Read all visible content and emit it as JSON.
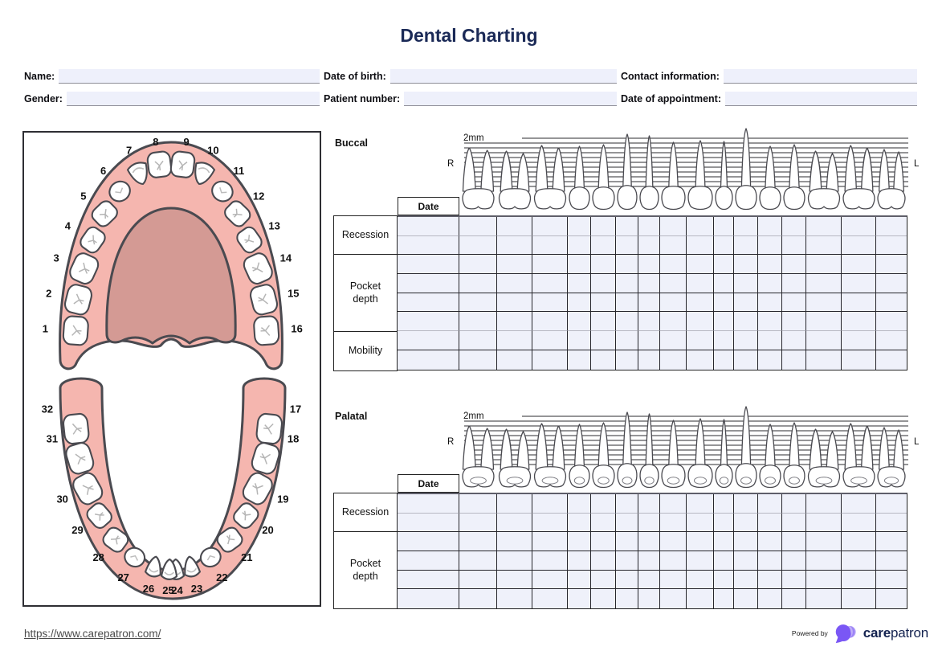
{
  "title": "Dental Charting",
  "patient_fields": {
    "name": "Name:",
    "dob": "Date of birth:",
    "contact": "Contact information:",
    "gender": "Gender:",
    "patient_number": "Patient number:",
    "appointment": "Date of appointment:"
  },
  "arch_diagram": {
    "upper_teeth": [
      "1",
      "2",
      "3",
      "4",
      "5",
      "6",
      "7",
      "8",
      "9",
      "10",
      "11",
      "12",
      "13",
      "14",
      "15",
      "16"
    ],
    "lower_teeth": [
      "17",
      "18",
      "19",
      "20",
      "21",
      "22",
      "23",
      "24",
      "25",
      "26",
      "27",
      "28",
      "29",
      "30",
      "31",
      "32"
    ]
  },
  "buccal": {
    "section_label": "Buccal",
    "scale_label": "2mm",
    "right_marker": "R",
    "left_marker": "L",
    "date_label": "Date",
    "row_groups": [
      {
        "label": "Recession",
        "rows": 2
      },
      {
        "label": "Pocket depth",
        "rows": 4
      },
      {
        "label": "Mobility",
        "rows": 2
      }
    ]
  },
  "palatal": {
    "section_label": "Palatal",
    "scale_label": "2mm",
    "right_marker": "R",
    "left_marker": "L",
    "date_label": "Date",
    "row_groups": [
      {
        "label": "Recession",
        "rows": 2
      },
      {
        "label": "Pocket depth",
        "rows": 4
      }
    ]
  },
  "tooth_types_strip": [
    "molar",
    "molar",
    "molar",
    "premolar",
    "premolar",
    "canine",
    "incisor",
    "central",
    "central",
    "incisor",
    "canine",
    "premolar",
    "premolar",
    "molar",
    "molar",
    "molar"
  ],
  "tooth_types_upper": [
    "molar",
    "molar",
    "molar",
    "premolar",
    "premolar",
    "canine",
    "incisor",
    "central",
    "central",
    "incisor",
    "canine",
    "premolar",
    "premolar",
    "molar",
    "molar",
    "molar"
  ],
  "tooth_types_lower": [
    "molar",
    "molar",
    "molar",
    "premolar",
    "premolar",
    "canine",
    "incisor",
    "incisor",
    "incisor",
    "incisor",
    "canine",
    "premolar",
    "premolar",
    "molar",
    "molar",
    "molar"
  ],
  "footer": {
    "url": "https://www.carepatron.com/",
    "powered_by": "Powered by",
    "brand_bold": "care",
    "brand_light": "patron"
  },
  "colors": {
    "navy": "#1b2a57",
    "gum": "#f5b6af",
    "palate": "#d49a94",
    "outline": "#4a4a50",
    "cell": "#eff1fa",
    "accent_purple": "#7a57f5",
    "accent_light": "#bcaaf8"
  }
}
